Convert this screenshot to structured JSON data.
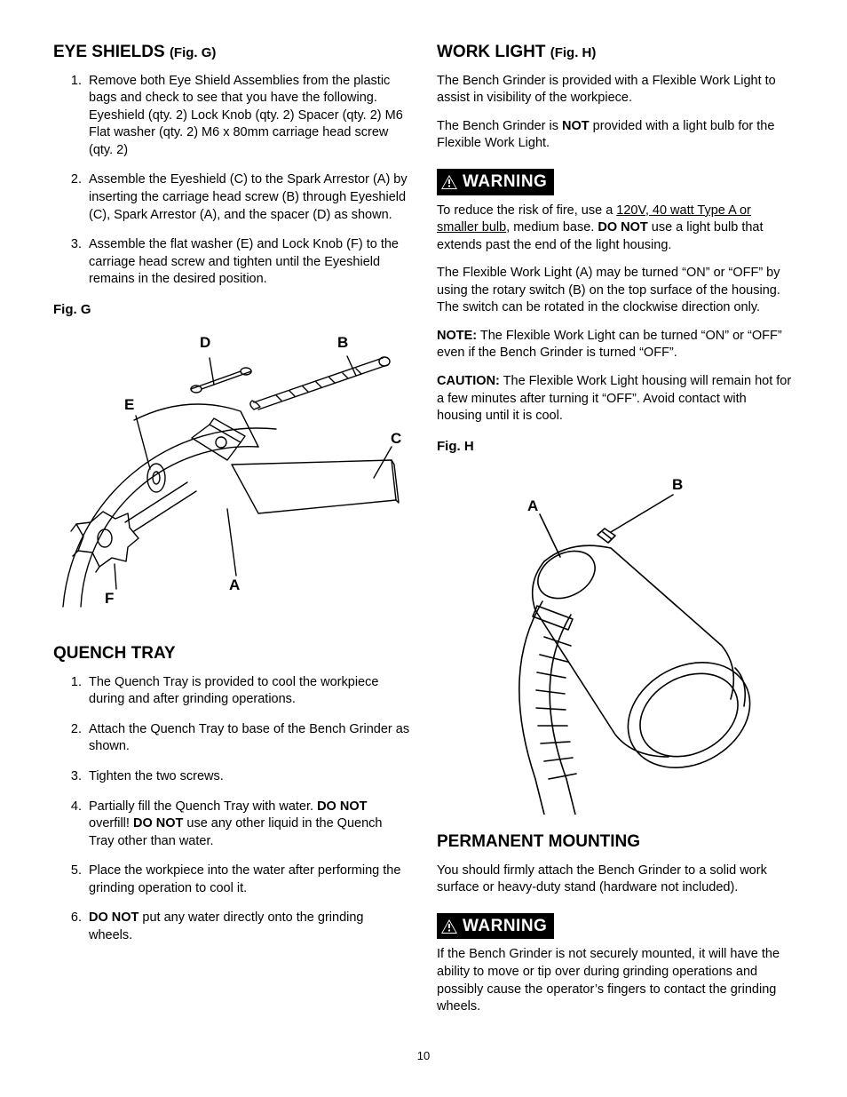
{
  "page_number": "10",
  "left": {
    "eye_shields": {
      "heading": "EYE SHIELDS",
      "fig_ref": "(Fig. G)",
      "steps": [
        "Remove both Eye Shield Assemblies from the plastic bags and check to see that you have the following. Eyeshield (qty. 2) Lock Knob (qty. 2) Spacer (qty. 2) M6 Flat washer (qty. 2) M6 x 80mm carriage head screw (qty. 2)",
        "Assemble the Eyeshield (C) to the Spark Arrestor (A) by inserting the carriage head screw (B) through Eyeshield (C), Spark Arrestor (A), and the spacer (D) as shown.",
        "Assemble the flat washer (E) and Lock Knob (F) to the carriage head screw and tighten until the Eyeshield remains in the desired position."
      ],
      "fig_label": "Fig. G",
      "fig_letters": {
        "A": "A",
        "B": "B",
        "C": "C",
        "D": "D",
        "E": "E",
        "F": "F"
      }
    },
    "quench": {
      "heading": "QUENCH TRAY",
      "steps": [
        {
          "t": "The Quench Tray is provided to cool the workpiece during and after grinding operations."
        },
        {
          "t": "Attach the Quench Tray to base of the Bench Grinder as shown."
        },
        {
          "t": "Tighten the two screws."
        },
        {
          "html": "Partially fill the Quench Tray with water. <span class=\"bold\">DO NOT</span> overfill! <span class=\"bold\">DO NOT</span> use any other liquid in the Quench Tray other than water."
        },
        {
          "t": "Place the workpiece into the water after performing the grinding operation to cool it."
        },
        {
          "html": "<span class=\"bold\">DO NOT</span> put any water directly onto the grinding wheels."
        }
      ]
    }
  },
  "right": {
    "work_light": {
      "heading": "WORK LIGHT",
      "fig_ref": "(Fig. H)",
      "p1": "The Bench Grinder is provided with a Flexible Work Light to assist in visibility of the workpiece.",
      "p2_pre": "The Bench Grinder is ",
      "p2_bold": "NOT",
      "p2_post": " provided with a light bulb for the Flexible Work Light.",
      "warning_label": "WARNING",
      "warn_pre": "To reduce the risk of fire, use a ",
      "warn_ul": "120V, 40 watt Type A or smaller bulb",
      "warn_mid": ", medium base. ",
      "warn_bold": "DO NOT",
      "warn_post": " use a light bulb that extends past the end of the light housing.",
      "p3": "The Flexible Work Light (A) may be turned “ON” or “OFF” by using the rotary switch (B) on the top surface of the housing. The switch can be rotated in the clockwise direction only.",
      "note_label": "NOTE:",
      "note_text": " The Flexible Work Light can be turned “ON” or “OFF” even if the Bench Grinder is turned “OFF”.",
      "caution_label": "CAUTION:",
      "caution_text": " The Flexible Work Light housing will remain hot for a few minutes after turning it “OFF”. Avoid contact with housing until it is cool.",
      "fig_label": "Fig. H",
      "fig_letters": {
        "A": "A",
        "B": "B"
      }
    },
    "mounting": {
      "heading": "PERMANENT MOUNTING",
      "p1": "You should firmly attach the Bench Grinder to a solid work surface or heavy-duty stand (hardware not included).",
      "warning_label": "WARNING",
      "warn_text": "If the Bench Grinder is not securely mounted, it will have the ability to move or tip over during grinding operations and possibly cause the operator’s fingers to contact the grinding wheels."
    }
  },
  "style": {
    "stroke": "#000000",
    "stroke_width": 1.4,
    "bg": "#ffffff"
  }
}
